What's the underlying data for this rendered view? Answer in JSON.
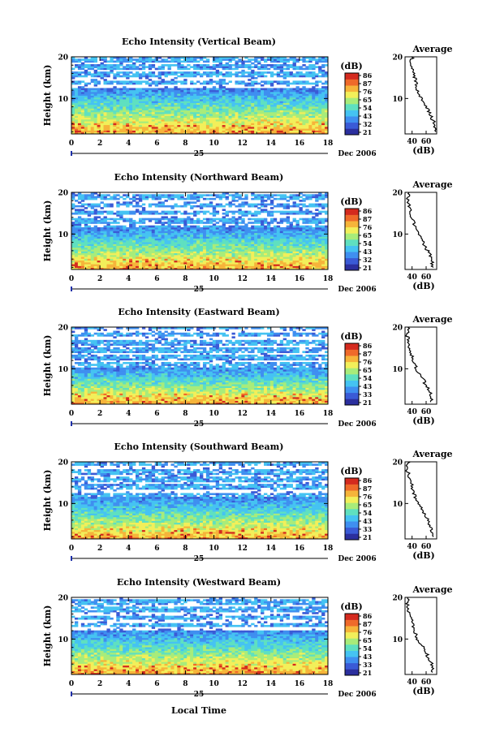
{
  "figure": {
    "x_axis_label": "Local Time",
    "date_label": "Dec 2006",
    "day_label": "25",
    "colorbar_unit": "(dB)",
    "average_title": "Average",
    "average_unit": "(dB)",
    "y_axis_label": "Height (km)"
  },
  "colorbar": {
    "ticks": [
      [
        86,
        87,
        76,
        65,
        54,
        43,
        32,
        21
      ],
      [
        86,
        87,
        76,
        65,
        54,
        43,
        32,
        21
      ],
      [
        86,
        87,
        76,
        65,
        54,
        43,
        33,
        21
      ],
      [
        86,
        87,
        76,
        65,
        54,
        43,
        33,
        21
      ],
      [
        86,
        87,
        76,
        65,
        54,
        43,
        33,
        21
      ]
    ],
    "colors": [
      "#2b2f9e",
      "#3a5ad6",
      "#3f8ff0",
      "#45c3f2",
      "#5fe0c0",
      "#a8ec7a",
      "#f2ef5a",
      "#f6b43a",
      "#ef6a2a",
      "#d42a1e"
    ]
  },
  "chart_data": [
    {
      "type": "heatmap",
      "title": "Echo Intensity (Vertical Beam)",
      "xlabel": "",
      "ylabel": "Height (km)",
      "x_ticks": [
        0,
        2,
        4,
        6,
        8,
        10,
        12,
        14,
        16,
        18
      ],
      "y_ticks": [
        10,
        20
      ],
      "xlim": [
        0,
        18
      ],
      "ylim": [
        1.5,
        20
      ],
      "colorbar_label": "(dB)",
      "average_profile": {
        "xlabel": "(dB)",
        "x_ticks": [
          40,
          60
        ],
        "y_ticks": [
          10,
          20
        ],
        "height_km": [
          20,
          18,
          16,
          14,
          12,
          10,
          8,
          6,
          4,
          2
        ],
        "echo_db": [
          40,
          38,
          42,
          45,
          48,
          52,
          60,
          66,
          72,
          74
        ]
      }
    },
    {
      "type": "heatmap",
      "title": "Echo Intensity (Northward Beam)",
      "xlabel": "",
      "ylabel": "Height (km)",
      "x_ticks": [
        0,
        2,
        4,
        6,
        8,
        10,
        12,
        14,
        16,
        18
      ],
      "y_ticks": [
        10,
        20
      ],
      "xlim": [
        0,
        18
      ],
      "ylim": [
        1.5,
        20
      ],
      "colorbar_label": "(dB)",
      "average_profile": {
        "xlabel": "(dB)",
        "x_ticks": [
          40,
          60
        ],
        "y_ticks": [
          10,
          20
        ],
        "height_km": [
          20,
          18,
          16,
          14,
          12,
          10,
          8,
          6,
          4,
          2
        ],
        "echo_db": [
          36,
          34,
          38,
          40,
          44,
          48,
          56,
          62,
          68,
          70
        ]
      }
    },
    {
      "type": "heatmap",
      "title": "Echo Intensity (Eastward Beam)",
      "xlabel": "",
      "ylabel": "Height (km)",
      "x_ticks": [
        0,
        2,
        4,
        6,
        8,
        10,
        12,
        14,
        16,
        18
      ],
      "y_ticks": [
        10,
        20
      ],
      "xlim": [
        0,
        18
      ],
      "ylim": [
        1.5,
        20
      ],
      "colorbar_label": "(dB)",
      "average_profile": {
        "xlabel": "(dB)",
        "x_ticks": [
          40,
          60
        ],
        "y_ticks": [
          10,
          20
        ],
        "height_km": [
          20,
          18,
          16,
          14,
          12,
          10,
          8,
          6,
          4,
          2
        ],
        "echo_db": [
          35,
          33,
          36,
          38,
          42,
          46,
          54,
          60,
          66,
          68
        ]
      }
    },
    {
      "type": "heatmap",
      "title": "Echo Intensity (Southward Beam)",
      "xlabel": "",
      "ylabel": "Height (km)",
      "x_ticks": [
        0,
        2,
        4,
        6,
        8,
        10,
        12,
        14,
        16,
        18
      ],
      "y_ticks": [
        10,
        20
      ],
      "xlim": [
        0,
        18
      ],
      "ylim": [
        1.5,
        20
      ],
      "colorbar_label": "(dB)",
      "average_profile": {
        "xlabel": "(dB)",
        "x_ticks": [
          40,
          60
        ],
        "y_ticks": [
          10,
          20
        ],
        "height_km": [
          20,
          18,
          16,
          14,
          12,
          10,
          8,
          6,
          4,
          2
        ],
        "echo_db": [
          35,
          33,
          37,
          40,
          44,
          48,
          56,
          62,
          68,
          70
        ]
      }
    },
    {
      "type": "heatmap",
      "title": "Echo Intensity (Westward Beam)",
      "xlabel": "",
      "ylabel": "Height (km)",
      "x_ticks": [
        0,
        2,
        4,
        6,
        8,
        10,
        12,
        14,
        16,
        18
      ],
      "y_ticks": [
        10,
        20
      ],
      "xlim": [
        0,
        18
      ],
      "ylim": [
        1.5,
        20
      ],
      "colorbar_label": "(dB)",
      "average_profile": {
        "xlabel": "(dB)",
        "x_ticks": [
          40,
          60
        ],
        "y_ticks": [
          10,
          20
        ],
        "height_km": [
          20,
          18,
          16,
          14,
          12,
          10,
          8,
          6,
          4,
          2
        ],
        "echo_db": [
          35,
          33,
          37,
          40,
          44,
          48,
          56,
          62,
          68,
          70
        ]
      }
    }
  ]
}
